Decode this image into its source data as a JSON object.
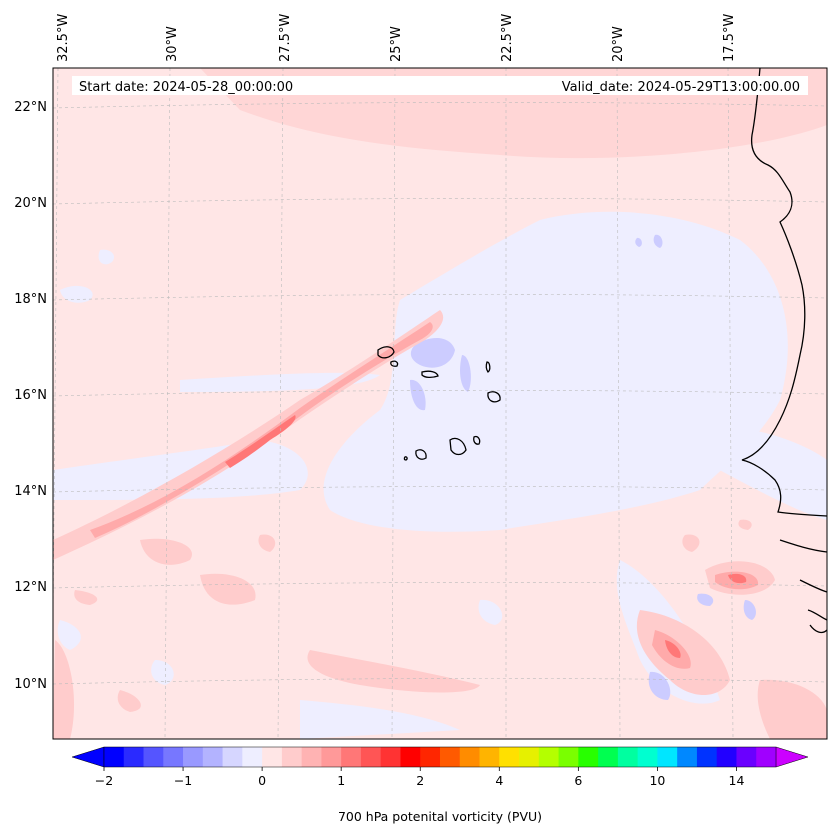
{
  "banner": {
    "start_date": "Start date: 2024-05-28_00:00:00",
    "valid_date": "Valid_date: 2024-05-29T13:00:00.00"
  },
  "axes": {
    "lon_labels": [
      "32.5°W",
      "30°W",
      "27.5°W",
      "25°W",
      "22.5°W",
      "20°W",
      "17.5°W"
    ],
    "lat_labels": [
      "22°N",
      "20°N",
      "18°N",
      "16°N",
      "14°N",
      "12°N",
      "10°N"
    ]
  },
  "colorbar": {
    "label": "700 hPa potenital vorticity (PVU)",
    "ticks": [
      "−2",
      "−1",
      "0",
      "1",
      "2",
      "4",
      "6",
      "10",
      "14"
    ],
    "colors": [
      "#0000ff",
      "#2a2aff",
      "#5555ff",
      "#7777ff",
      "#9999ff",
      "#b3b3ff",
      "#d6d6ff",
      "#eeeeff",
      "#ffe6e6",
      "#ffcccc",
      "#ffb3b3",
      "#ff9999",
      "#ff7777",
      "#ff5555",
      "#ff3333",
      "#ff0000",
      "#ff2600",
      "#ff5a00",
      "#ff8c00",
      "#ffb400",
      "#ffe000",
      "#e6f000",
      "#b4ff00",
      "#7aff00",
      "#28ff00",
      "#00ff50",
      "#00ffa0",
      "#00ffd0",
      "#00e6ff",
      "#0088ff",
      "#0033ff",
      "#2200ff",
      "#6a00ff",
      "#a000ff"
    ],
    "under_color": "#0000ff",
    "over_color": "#cc00ff"
  },
  "map": {
    "background": "#ffe6e6",
    "light_blue": "#eeeeff",
    "mid_blue": "#ccccff",
    "pink": "#ffcccc",
    "pink_dark": "#ffaaaa",
    "red_core": "#ff7777",
    "coast_color": "#000000"
  }
}
